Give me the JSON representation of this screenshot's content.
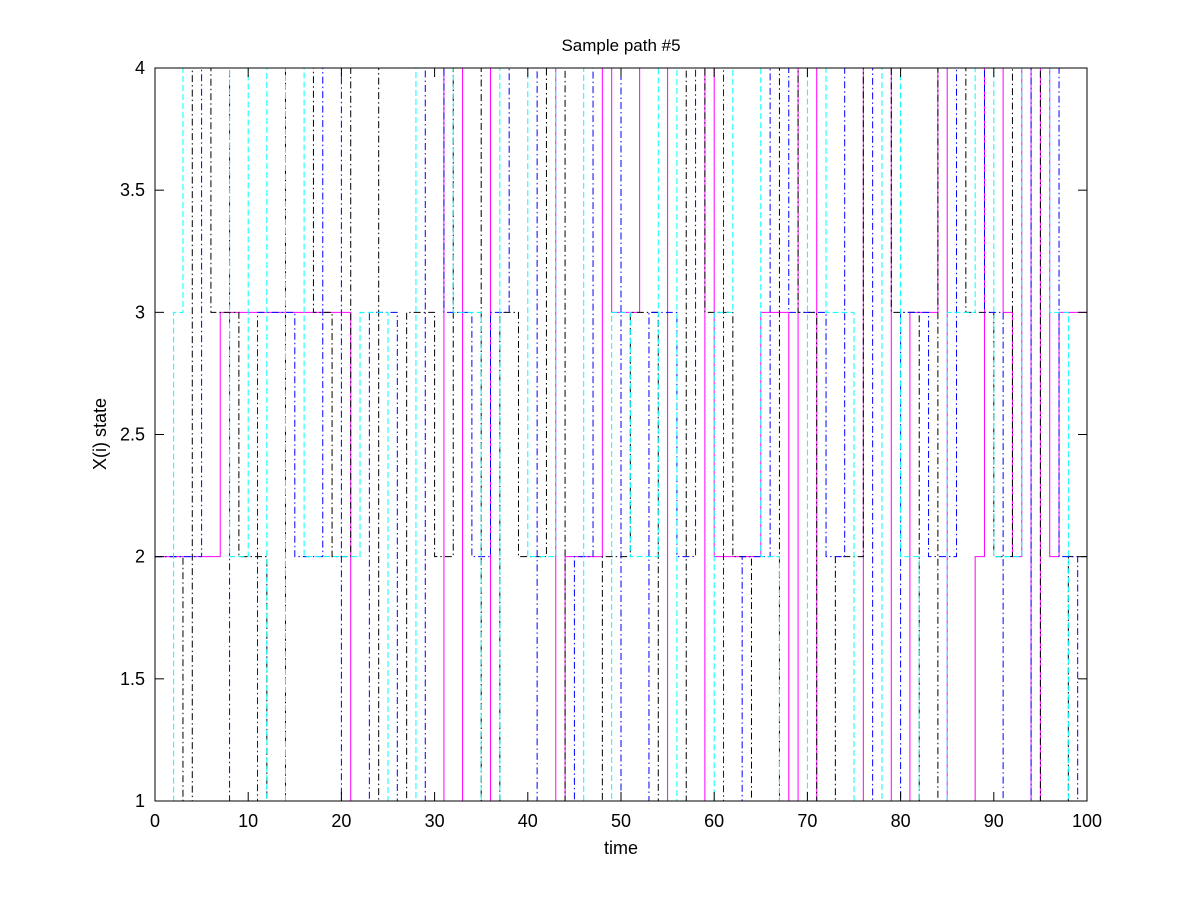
{
  "chart_data": {
    "type": "line",
    "title": "Sample path #5",
    "xlabel": "time",
    "ylabel": "X(i) state",
    "xlim": [
      0,
      100
    ],
    "ylim": [
      1,
      4
    ],
    "xticks": [
      0,
      10,
      20,
      30,
      40,
      50,
      60,
      70,
      80,
      90,
      100
    ],
    "yticks": [
      1,
      1.5,
      2,
      2.5,
      3,
      3.5,
      4
    ],
    "xtick_labels": [
      "0",
      "10",
      "20",
      "30",
      "40",
      "50",
      "60",
      "70",
      "80",
      "90",
      "100"
    ],
    "ytick_labels": [
      "1",
      "1.5",
      "2",
      "2.5",
      "3",
      "3.5",
      "4"
    ],
    "grid": false,
    "step": "post",
    "colors": {
      "axes": "#000000",
      "background": "#ffffff"
    },
    "series": [
      {
        "color": "#ff00ff",
        "line_style": "solid",
        "x": [
          0,
          7,
          21,
          31,
          33,
          36,
          43,
          44,
          48,
          49,
          52,
          55,
          59,
          60,
          65,
          68,
          69,
          71,
          76,
          79,
          81,
          84,
          85,
          88,
          89,
          91,
          92,
          93,
          94,
          95,
          96,
          97,
          100
        ],
        "y": [
          2,
          3,
          1,
          4,
          1,
          4,
          1,
          2,
          4,
          3,
          4,
          1,
          4,
          2,
          3,
          1,
          4,
          1,
          4,
          1,
          3,
          4,
          1,
          2,
          4,
          3,
          2,
          4,
          1,
          4,
          2,
          3,
          4
        ]
      },
      {
        "color": "#000000",
        "line_style": "dashdot",
        "x": [
          0,
          3,
          4,
          6,
          9,
          12,
          14,
          17,
          19,
          21,
          24,
          27,
          30,
          32,
          35,
          37,
          39,
          42,
          44,
          48,
          51,
          54,
          57,
          59,
          62,
          64,
          67,
          69,
          71,
          73,
          76,
          79,
          82,
          84,
          87,
          90,
          92,
          95,
          98,
          100
        ],
        "y": [
          2,
          1,
          4,
          3,
          2,
          1,
          4,
          3,
          2,
          4,
          1,
          3,
          2,
          4,
          1,
          3,
          2,
          4,
          1,
          2,
          3,
          1,
          4,
          3,
          2,
          1,
          4,
          3,
          1,
          2,
          4,
          3,
          1,
          4,
          3,
          2,
          4,
          1,
          2,
          2
        ]
      },
      {
        "color": "#0000ff",
        "line_style": "dashdot",
        "x": [
          0,
          5,
          8,
          11,
          15,
          18,
          20,
          23,
          26,
          29,
          31,
          34,
          36,
          38,
          41,
          45,
          47,
          50,
          53,
          56,
          58,
          61,
          63,
          66,
          68,
          72,
          74,
          77,
          80,
          83,
          86,
          89,
          91,
          94,
          97,
          99,
          100
        ],
        "y": [
          2,
          4,
          1,
          3,
          2,
          4,
          1,
          3,
          1,
          4,
          3,
          2,
          3,
          4,
          1,
          2,
          4,
          1,
          3,
          2,
          4,
          1,
          2,
          4,
          3,
          2,
          4,
          1,
          3,
          2,
          4,
          3,
          1,
          4,
          2,
          1,
          4
        ]
      },
      {
        "color": "#00ffff",
        "line_style": "dashed",
        "x": [
          0,
          2,
          3,
          8,
          10,
          12,
          14,
          16,
          22,
          25,
          28,
          32,
          35,
          37,
          40,
          43,
          46,
          49,
          51,
          54,
          56,
          60,
          62,
          65,
          67,
          70,
          72,
          75,
          78,
          80,
          82,
          85,
          88,
          90,
          93,
          96,
          98,
          100
        ],
        "y": [
          1,
          3,
          4,
          2,
          4,
          1,
          4,
          2,
          3,
          1,
          4,
          3,
          1,
          4,
          2,
          4,
          1,
          3,
          2,
          4,
          1,
          3,
          4,
          2,
          1,
          4,
          3,
          1,
          4,
          2,
          1,
          3,
          4,
          2,
          4,
          3,
          1,
          3
        ]
      }
    ]
  }
}
